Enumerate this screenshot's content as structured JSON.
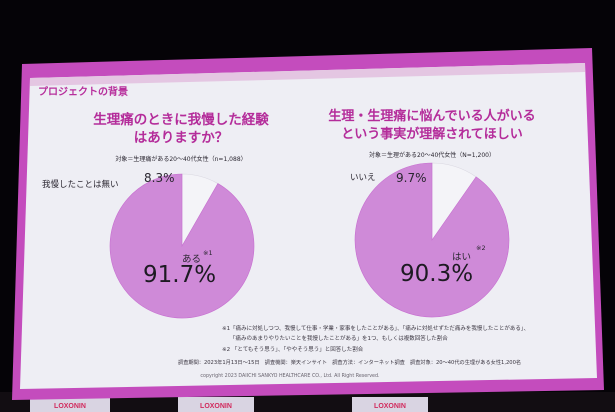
{
  "slide": {
    "header": "プロジェクトの背景",
    "copyright": "copyright 2023 DAIICHI SANKYO HEALTHCARE CO., Ltd. All Right Reserved.",
    "accent_color": "#c64fbf",
    "pie_color": "#cf8ad8",
    "pie_gap_color": "#f4f4f8"
  },
  "left_panel": {
    "question_line1": "生理痛のときに我慢した経験",
    "question_line2": "はありますか？",
    "target": "対象＝生理痛がある20～40代女性（n=1,088）",
    "chart_data": {
      "type": "pie",
      "categories": [
        "ある",
        "我慢したことは無い"
      ],
      "values": [
        91.7,
        8.3
      ]
    },
    "big_label": "ある",
    "big_note": "※1",
    "big_value": "91.7%",
    "small_label": "我慢したことは無い",
    "small_value": "8.3%"
  },
  "right_panel": {
    "question_line1": "生理・生理痛に悩んでいる人がいる",
    "question_line2": "という事実が理解されてほしい",
    "target": "対象＝生理がある20～40代女性（N=1,200）",
    "chart_data": {
      "type": "pie",
      "categories": [
        "はい",
        "いいえ"
      ],
      "values": [
        90.3,
        9.7
      ]
    },
    "big_label": "はい",
    "big_note": "※2",
    "big_value": "90.3%",
    "small_label": "いいえ",
    "small_value": "9.7%"
  },
  "footnotes": {
    "note1_line1": "※1「痛みに対処しつつ、我慢して仕事・学業・家事をしたことがある」、「痛みに対処せずただ痛みを我慢したことがある」、",
    "note1_line2": "「痛みのあまりやりたいことを我慢したことがある」を1つ、もしくは複数回答した割合",
    "note2": "※2 「とてもそう思う」、「ややそう思う」と回答した割合",
    "survey": "調査期間：2023年1月13日～15日　調査機関：楽天インサイト　調査方法：インターネット調査　調査対象：20～40代の生理がある女性1,200名"
  },
  "stage": {
    "banner1": "LOXONIN",
    "banner2": "LOXONIN",
    "banner3": "LOXONIN"
  }
}
